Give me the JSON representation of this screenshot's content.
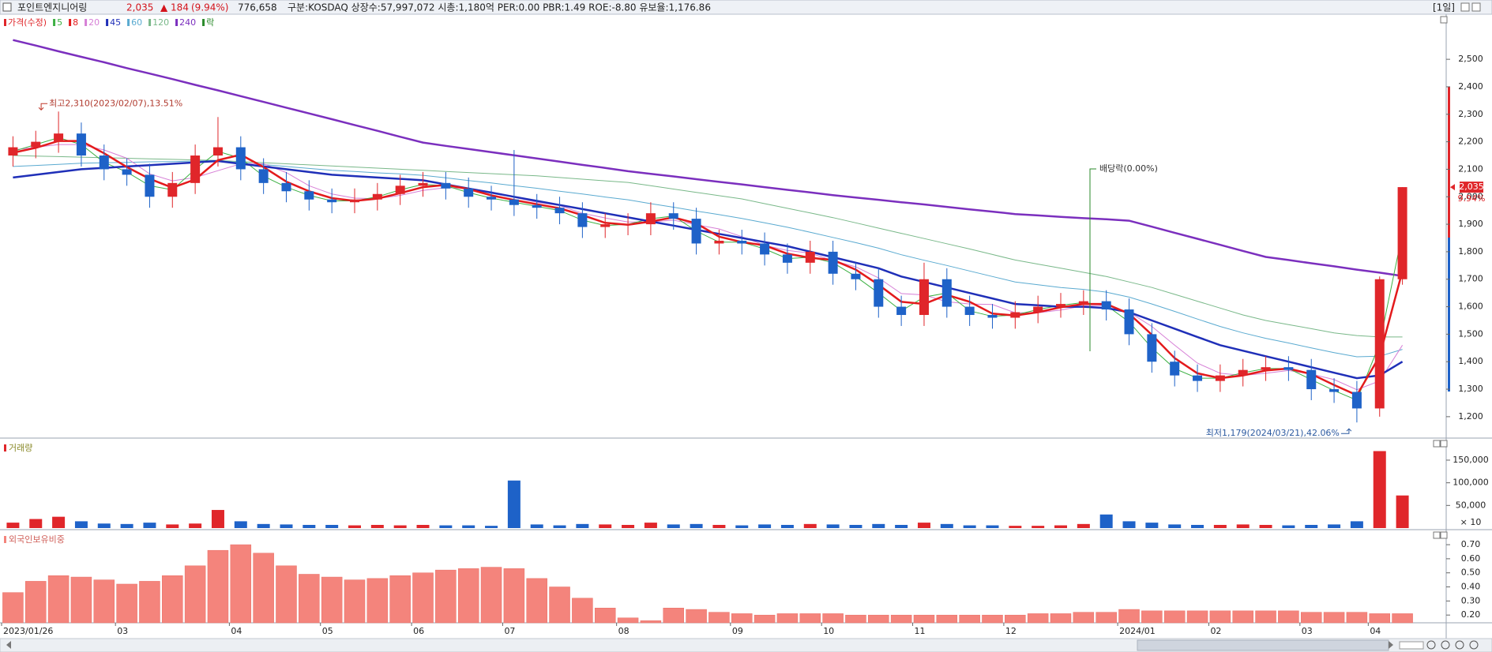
{
  "header": {
    "name": "포인트엔지니어링",
    "price": "2,035",
    "change": "▲ 184",
    "change_pct": "(9.94%)",
    "volume": "776,658",
    "info": "구분:KOSDAQ 상장수:57,997,072 시총:1,180억 PER:0.00 PBR:1.49 ROE:-8.80 유보율:1,176.86",
    "period": "[1일]"
  },
  "chart_data": [
    {
      "type": "candlestick",
      "name": "가격(수정)",
      "up_color": "#e0262a",
      "down_color": "#1e62c8",
      "open": [
        2150,
        2180,
        2200,
        2230,
        2150,
        2100,
        2080,
        2000,
        2050,
        2150,
        2180,
        2100,
        2050,
        2020,
        1990,
        1980,
        1990,
        2010,
        2040,
        2050,
        2030,
        2000,
        1990,
        1970,
        1960,
        1940,
        1890,
        1900,
        1900,
        1940,
        1920,
        1830,
        1840,
        1830,
        1790,
        1760,
        1800,
        1720,
        1700,
        1600,
        1570,
        1700,
        1600,
        1570,
        1560,
        1580,
        1600,
        1610,
        1620,
        1590,
        1500,
        1400,
        1350,
        1330,
        1350,
        1370,
        1380,
        1370,
        1300,
        1290,
        1230,
        1700
      ],
      "high": [
        2220,
        2240,
        2310,
        2270,
        2190,
        2140,
        2120,
        2090,
        2190,
        2290,
        2220,
        2140,
        2090,
        2060,
        2030,
        2030,
        2050,
        2080,
        2090,
        2090,
        2070,
        2040,
        2170,
        2010,
        2000,
        1980,
        1940,
        1940,
        1980,
        1980,
        1960,
        1880,
        1880,
        1870,
        1830,
        1840,
        1840,
        1760,
        1740,
        1640,
        1760,
        1740,
        1640,
        1610,
        1620,
        1640,
        1650,
        1660,
        1660,
        1630,
        1540,
        1440,
        1390,
        1390,
        1410,
        1420,
        1420,
        1410,
        1340,
        1330,
        1710,
        2035
      ],
      "low": [
        2110,
        2140,
        2160,
        2110,
        2060,
        2040,
        1960,
        1960,
        2010,
        2110,
        2060,
        2010,
        1980,
        1950,
        1940,
        1940,
        1950,
        1970,
        2000,
        1990,
        1960,
        1950,
        1930,
        1920,
        1900,
        1850,
        1850,
        1860,
        1860,
        1880,
        1790,
        1790,
        1790,
        1750,
        1720,
        1720,
        1680,
        1660,
        1560,
        1530,
        1530,
        1560,
        1530,
        1520,
        1520,
        1540,
        1560,
        1570,
        1550,
        1460,
        1360,
        1310,
        1290,
        1290,
        1310,
        1330,
        1330,
        1260,
        1250,
        1179,
        1200,
        1680
      ],
      "close": [
        2180,
        2200,
        2230,
        2150,
        2100,
        2080,
        2000,
        2050,
        2150,
        2180,
        2100,
        2050,
        2020,
        1990,
        1980,
        1990,
        2010,
        2040,
        2050,
        2030,
        2000,
        1990,
        1970,
        1960,
        1940,
        1890,
        1900,
        1900,
        1940,
        1920,
        1830,
        1840,
        1830,
        1790,
        1760,
        1800,
        1720,
        1700,
        1600,
        1570,
        1700,
        1600,
        1570,
        1560,
        1580,
        1600,
        1610,
        1620,
        1590,
        1500,
        1400,
        1350,
        1330,
        1350,
        1370,
        1380,
        1370,
        1300,
        1290,
        1230,
        1700,
        2035
      ],
      "series": [
        {
          "name": "5",
          "color": "#3cb043",
          "values": [
            2165,
            2190,
            2215,
            2190,
            2125,
            2090,
            2040,
            2025,
            2100,
            2165,
            2140,
            2075,
            2035,
            2005,
            1985,
            1985,
            2000,
            2025,
            2045,
            2040,
            2015,
            1995,
            1980,
            1965,
            1950,
            1915,
            1895,
            1900,
            1920,
            1930,
            1875,
            1835,
            1835,
            1810,
            1775,
            1780,
            1760,
            1710,
            1650,
            1585,
            1635,
            1650,
            1585,
            1565,
            1570,
            1590,
            1605,
            1615,
            1605,
            1545,
            1450,
            1375,
            1340,
            1340,
            1360,
            1375,
            1375,
            1335,
            1295,
            1260,
            1465,
            1868
          ]
        },
        {
          "name": "8",
          "color": "#e31a1c",
          "values": [
            2160,
            2178,
            2203,
            2203,
            2158,
            2108,
            2065,
            2033,
            2063,
            2133,
            2153,
            2108,
            2055,
            2020,
            1995,
            1985,
            1993,
            2013,
            2035,
            2043,
            2028,
            2005,
            1988,
            1973,
            1958,
            1933,
            1905,
            1898,
            1910,
            1925,
            1903,
            1855,
            1835,
            1823,
            1793,
            1778,
            1770,
            1735,
            1680,
            1618,
            1610,
            1643,
            1618,
            1575,
            1568,
            1580,
            1598,
            1610,
            1610,
            1575,
            1498,
            1413,
            1358,
            1340,
            1350,
            1368,
            1375,
            1355,
            1315,
            1278,
            1420,
            1730
          ]
        },
        {
          "name": "20",
          "color": "#d67fd6",
          "values": [
            2170,
            2180,
            2190,
            2190,
            2170,
            2140,
            2083,
            2058,
            2070,
            2095,
            2120,
            2120,
            2088,
            2040,
            2010,
            1995,
            1993,
            2005,
            2023,
            2033,
            2030,
            2018,
            1998,
            1980,
            1968,
            1940,
            1923,
            1908,
            1908,
            1915,
            1898,
            1883,
            1855,
            1823,
            1805,
            1795,
            1768,
            1745,
            1705,
            1648,
            1643,
            1618,
            1610,
            1608,
            1578,
            1578,
            1588,
            1603,
            1605,
            1580,
            1528,
            1460,
            1395,
            1358,
            1350,
            1358,
            1368,
            1355,
            1335,
            1298,
            1330,
            1460
          ]
        },
        {
          "name": "45",
          "color": "#1f2fb8",
          "values": [
            2070,
            2080,
            2090,
            2100,
            2105,
            2110,
            2115,
            2120,
            2125,
            2130,
            2120,
            2110,
            2100,
            2090,
            2080,
            2075,
            2070,
            2065,
            2060,
            2045,
            2030,
            2015,
            2000,
            1985,
            1970,
            1955,
            1940,
            1925,
            1910,
            1895,
            1880,
            1865,
            1850,
            1835,
            1820,
            1800,
            1780,
            1760,
            1740,
            1710,
            1690,
            1670,
            1650,
            1630,
            1610,
            1605,
            1600,
            1600,
            1595,
            1580,
            1550,
            1520,
            1490,
            1460,
            1440,
            1420,
            1400,
            1380,
            1360,
            1340,
            1350,
            1400
          ]
        },
        {
          "name": "60",
          "color": "#5aaad0",
          "values": [
            2110,
            2114,
            2118,
            2122,
            2124,
            2125,
            2127,
            2128,
            2130,
            2131,
            2124,
            2117,
            2110,
            2103,
            2096,
            2092,
            2087,
            2083,
            2078,
            2069,
            2059,
            2050,
            2040,
            2031,
            2020,
            2010,
            1999,
            1989,
            1975,
            1962,
            1948,
            1935,
            1921,
            1905,
            1889,
            1871,
            1852,
            1833,
            1813,
            1789,
            1769,
            1750,
            1730,
            1710,
            1690,
            1680,
            1670,
            1663,
            1653,
            1635,
            1610,
            1583,
            1555,
            1528,
            1505,
            1485,
            1468,
            1450,
            1433,
            1418,
            1420,
            1445
          ]
        },
        {
          "name": "120",
          "color": "#79b889",
          "values": [
            2150,
            2148,
            2146,
            2144,
            2142,
            2140,
            2138,
            2136,
            2134,
            2132,
            2128,
            2124,
            2120,
            2116,
            2112,
            2108,
            2104,
            2100,
            2096,
            2092,
            2088,
            2084,
            2080,
            2076,
            2070,
            2064,
            2058,
            2052,
            2040,
            2028,
            2016,
            2004,
            1992,
            1975,
            1958,
            1941,
            1924,
            1905,
            1886,
            1867,
            1848,
            1829,
            1810,
            1790,
            1770,
            1755,
            1740,
            1725,
            1710,
            1690,
            1670,
            1645,
            1620,
            1595,
            1570,
            1550,
            1535,
            1520,
            1505,
            1495,
            1490,
            1490
          ]
        },
        {
          "name": "240",
          "color": "#7b2fbe",
          "values": [
            2570,
            2550,
            2529,
            2509,
            2489,
            2468,
            2448,
            2428,
            2407,
            2387,
            2366,
            2345,
            2324,
            2303,
            2282,
            2261,
            2240,
            2218,
            2197,
            2185,
            2174,
            2162,
            2151,
            2139,
            2128,
            2116,
            2105,
            2093,
            2083,
            2074,
            2064,
            2054,
            2045,
            2035,
            2025,
            2016,
            2006,
            1997,
            1989,
            1980,
            1972,
            1963,
            1954,
            1946,
            1937,
            1932,
            1927,
            1922,
            1918,
            1913,
            1891,
            1869,
            1847,
            1825,
            1803,
            1781,
            1770,
            1758,
            1747,
            1735,
            1724,
            1712
          ]
        }
      ],
      "ex_dividend": {
        "name": "락",
        "color": "#2a8a2a",
        "label": "배당락(0.00%)"
      },
      "high_label": "최고2,310(2023/02/07),13.51%",
      "low_label": "최저1,179(2024/03/21),42.06%",
      "last_price": {
        "value": 2035,
        "label": "2,035"
      },
      "last_change_label": "9.94%",
      "ylim": [
        1125,
        2664
      ],
      "yticks": [
        {
          "value": 1200,
          "label": "1,200"
        },
        {
          "value": 1300,
          "label": "1,300"
        },
        {
          "value": 1400,
          "label": "1,400"
        },
        {
          "value": 1500,
          "label": "1,500"
        },
        {
          "value": 1600,
          "label": "1,600"
        },
        {
          "value": 1700,
          "label": "1,700"
        },
        {
          "value": 1800,
          "label": "1,800"
        },
        {
          "value": 1900,
          "label": "1,900"
        },
        {
          "value": 2000,
          "label": "2,000"
        },
        {
          "value": 2100,
          "label": "2,100"
        },
        {
          "value": 2200,
          "label": "2,200"
        },
        {
          "value": 2300,
          "label": "2,300"
        },
        {
          "value": 2400,
          "label": "2,400"
        },
        {
          "value": 2500,
          "label": "2,500"
        }
      ],
      "grid": false
    },
    {
      "type": "bar",
      "title": "거래량",
      "unit_label": "× 10",
      "values": [
        12000,
        20000,
        25000,
        15000,
        10000,
        9000,
        12000,
        8000,
        10000,
        40000,
        15000,
        9000,
        8000,
        7000,
        7000,
        6000,
        7000,
        6000,
        7000,
        6000,
        6000,
        5000,
        105000,
        8000,
        6000,
        9000,
        8000,
        7000,
        12000,
        8000,
        9000,
        7000,
        6000,
        8000,
        7000,
        9000,
        8000,
        7000,
        9000,
        7000,
        12000,
        9000,
        6000,
        6000,
        5000,
        5000,
        6000,
        9000,
        30000,
        15000,
        12000,
        8000,
        7000,
        7000,
        8000,
        7000,
        6000,
        7000,
        8000,
        15000,
        170000,
        72000
      ],
      "ylim": [
        0,
        190000
      ],
      "yticks": [
        {
          "value": 50000,
          "label": "50,000"
        },
        {
          "value": 100000,
          "label": "100,000"
        },
        {
          "value": 150000,
          "label": "150,000"
        }
      ],
      "grid": false
    },
    {
      "type": "bar",
      "title": "외국인보유비중",
      "color": "#f4847c",
      "categories": [
        "2023/01/26",
        null,
        null,
        null,
        null,
        "03",
        null,
        null,
        null,
        null,
        "04",
        null,
        null,
        null,
        "05",
        null,
        null,
        null,
        "06",
        null,
        null,
        null,
        "07",
        null,
        null,
        null,
        null,
        "08",
        null,
        null,
        null,
        null,
        "09",
        null,
        null,
        null,
        "10",
        null,
        null,
        null,
        "11",
        null,
        null,
        null,
        "12",
        null,
        null,
        null,
        null,
        "2024/01",
        null,
        null,
        null,
        "02",
        null,
        null,
        null,
        "03",
        null,
        null,
        "04",
        null
      ],
      "values": [
        0.36,
        0.44,
        0.48,
        0.47,
        0.45,
        0.42,
        0.44,
        0.48,
        0.55,
        0.66,
        0.7,
        0.64,
        0.55,
        0.49,
        0.47,
        0.45,
        0.46,
        0.48,
        0.5,
        0.52,
        0.53,
        0.54,
        0.53,
        0.46,
        0.4,
        0.32,
        0.25,
        0.18,
        0.16,
        0.25,
        0.24,
        0.22,
        0.21,
        0.2,
        0.21,
        0.21,
        0.21,
        0.2,
        0.2,
        0.2,
        0.2,
        0.2,
        0.2,
        0.2,
        0.2,
        0.21,
        0.21,
        0.22,
        0.22,
        0.24,
        0.23,
        0.23,
        0.23,
        0.23,
        0.23,
        0.23,
        0.23,
        0.22,
        0.22,
        0.22,
        0.21,
        0.21
      ],
      "ylim": [
        0.145,
        0.79
      ],
      "yticks": [
        {
          "value": 0.2,
          "label": "0.20"
        },
        {
          "value": 0.3,
          "label": "0.30"
        },
        {
          "value": 0.4,
          "label": "0.40"
        },
        {
          "value": 0.5,
          "label": "0.50"
        },
        {
          "value": 0.6,
          "label": "0.60"
        },
        {
          "value": 0.7,
          "label": "0.70"
        }
      ],
      "grid": false
    }
  ]
}
